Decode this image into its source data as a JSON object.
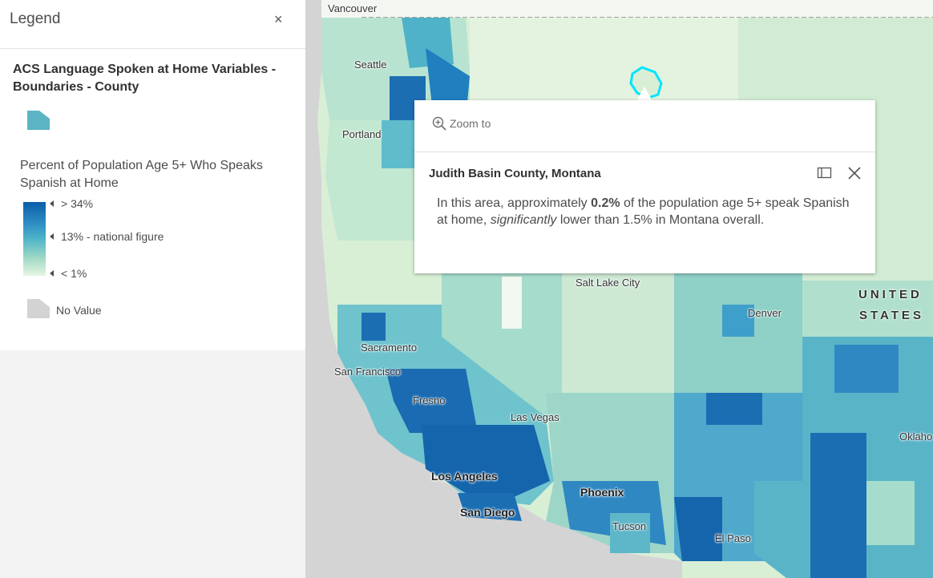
{
  "legend": {
    "title": "Legend",
    "close_icon": "×",
    "layer_title": "ACS Language Spoken at Home Variables - Boundaries - County",
    "field_title": "Percent of Population Age 5+ Who Speaks Spanish at Home",
    "ramp": {
      "high_label": "> 34%",
      "mid_label": "13% - national figure",
      "low_label": "< 1%",
      "colors": [
        "#0a5ea8",
        "#2f8fc4",
        "#4fb4c9",
        "#9dd8c4",
        "#e7f6e2"
      ]
    },
    "symbol_color": "#5ab4c4",
    "no_value_label": "No Value",
    "no_value_color": "#d3d3d3"
  },
  "map": {
    "cities": [
      "Vancouver",
      "Seattle",
      "Portland",
      "Salt Lake City",
      "Denver",
      "Sacramento",
      "San Francisco",
      "Fresno",
      "Las Vegas",
      "Los Angeles",
      "San Diego",
      "Phoenix",
      "Tucson",
      "El Paso",
      "Oklaho"
    ],
    "country_label_line1": "UNITED",
    "country_label_line2": "STATES",
    "highlight_color": "#00e5ff"
  },
  "popup": {
    "zoom_to": "Zoom to",
    "title": "Judith Basin County, Montana",
    "body_prefix": "In this area, approximately ",
    "body_value": "0.2%",
    "body_middle": " of the population age 5+ speak Spanish at home, ",
    "body_emphasis": "significantly",
    "body_suffix": " lower than 1.5% in Montana overall."
  }
}
